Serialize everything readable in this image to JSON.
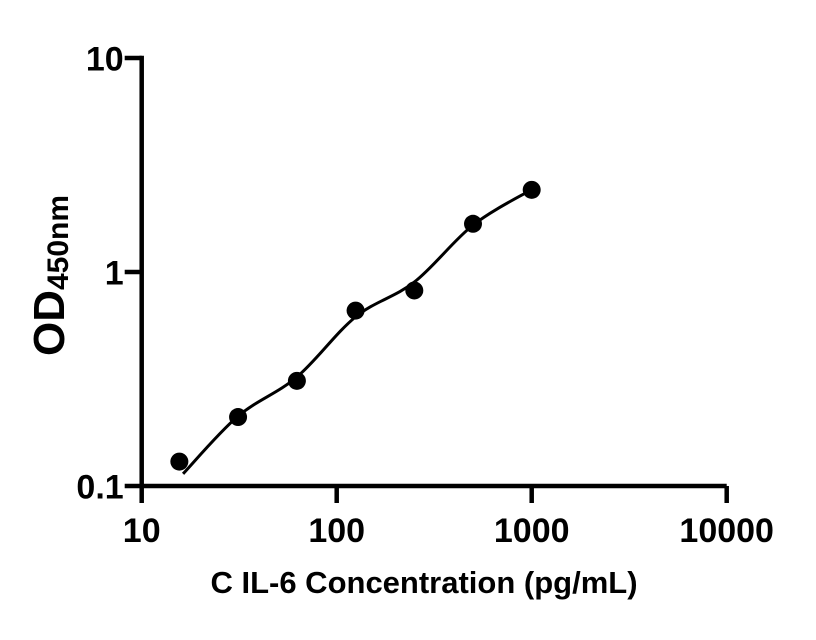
{
  "figure": {
    "background_color": "#ffffff",
    "ink_color": "#000000"
  },
  "chart_data": {
    "type": "scatter",
    "title": "",
    "xlabel": "C IL-6 Concentration (pg/mL)",
    "ylabel_main": "OD",
    "ylabel_sub": "450nm",
    "x_scale": "log",
    "y_scale": "log",
    "xlim": [
      10,
      10000
    ],
    "ylim": [
      0.1,
      10
    ],
    "x_ticks": [
      10,
      100,
      1000,
      10000
    ],
    "x_tick_labels": [
      "10",
      "100",
      "1000",
      "10000"
    ],
    "y_ticks": [
      0.1,
      1,
      10
    ],
    "y_tick_labels": [
      "0.1",
      "1",
      "10"
    ],
    "grid": false,
    "legend_position": "none",
    "marker": "filled-circle",
    "series": [
      {
        "name": "standard-points",
        "color": "#000000",
        "points": [
          {
            "x": 15.6,
            "y": 0.13
          },
          {
            "x": 31.2,
            "y": 0.21
          },
          {
            "x": 62.5,
            "y": 0.31
          },
          {
            "x": 125,
            "y": 0.66
          },
          {
            "x": 250,
            "y": 0.82
          },
          {
            "x": 500,
            "y": 1.68
          },
          {
            "x": 1000,
            "y": 2.42
          }
        ]
      }
    ],
    "fit_curve": {
      "name": "standard-curve-fit",
      "color": "#000000",
      "points": [
        {
          "x": 16.3,
          "y": 0.114
        },
        {
          "x": 31.2,
          "y": 0.212
        },
        {
          "x": 62.5,
          "y": 0.323
        },
        {
          "x": 125,
          "y": 0.617
        },
        {
          "x": 250,
          "y": 0.897
        },
        {
          "x": 500,
          "y": 1.656
        },
        {
          "x": 1010,
          "y": 2.44
        }
      ]
    }
  }
}
